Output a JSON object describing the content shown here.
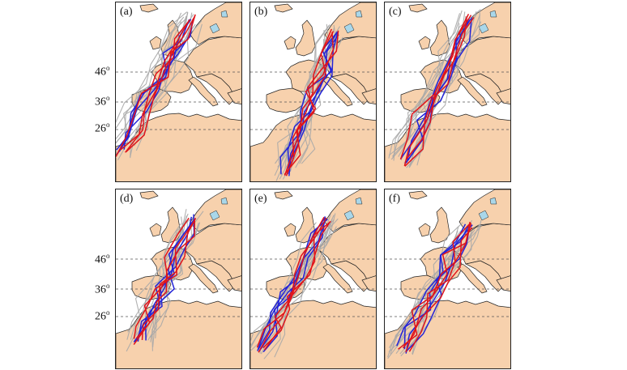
{
  "colors": {
    "land": "#f7d1ad",
    "sea": "#ffffff",
    "coast": "#222222",
    "lake": "#a9d7ea",
    "track_grey": "#a9a9a9",
    "track_red": "#e0141a",
    "track_blue": "#2323d8",
    "gridline": "#555555"
  },
  "latitude_labels": [
    {
      "deg": "46",
      "sup": "o"
    },
    {
      "deg": "36",
      "sup": "o"
    },
    {
      "deg": "26",
      "sup": "o"
    }
  ],
  "panels": [
    {
      "letter": "(a)"
    },
    {
      "letter": "(b)"
    },
    {
      "letter": "(c)"
    },
    {
      "letter": "(d)"
    },
    {
      "letter": "(e)"
    },
    {
      "letter": "(f)"
    }
  ]
}
